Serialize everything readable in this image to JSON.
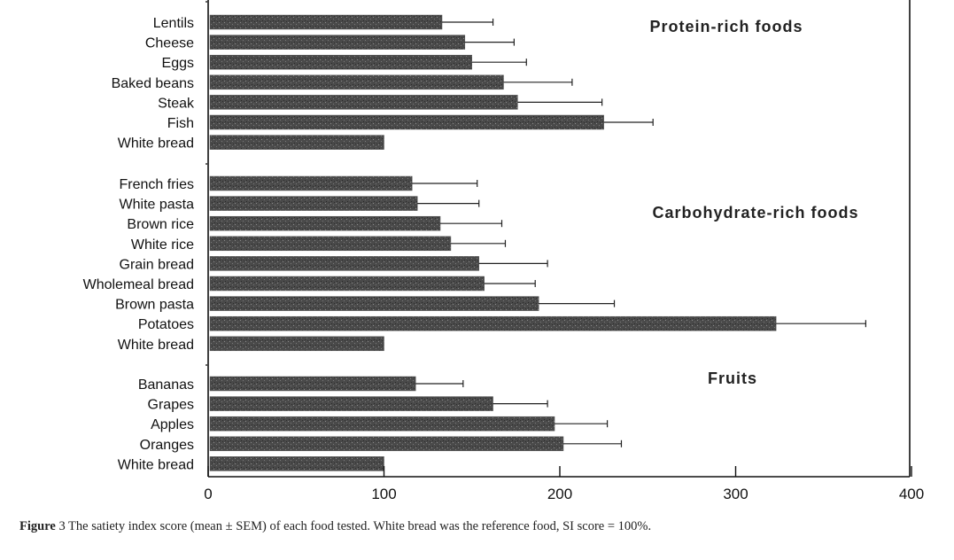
{
  "chart_data": {
    "type": "bar",
    "orientation": "horizontal",
    "xlim": [
      0,
      400
    ],
    "xticks": [
      "0",
      "100",
      "200",
      "300",
      "400"
    ],
    "grid": false,
    "groups": [
      {
        "title": "Protein-rich  foods",
        "bars": [
          {
            "label": "Lentils",
            "value": 133,
            "sem": 29
          },
          {
            "label": "Cheese",
            "value": 146,
            "sem": 28
          },
          {
            "label": "Eggs",
            "value": 150,
            "sem": 31
          },
          {
            "label": "Baked beans",
            "value": 168,
            "sem": 39
          },
          {
            "label": "Steak",
            "value": 176,
            "sem": 48
          },
          {
            "label": "Fish",
            "value": 225,
            "sem": 28
          },
          {
            "label": "White bread",
            "value": 100,
            "sem": 0
          }
        ]
      },
      {
        "title": "Carbohydrate-rich  foods",
        "bars": [
          {
            "label": "French fries",
            "value": 116,
            "sem": 37
          },
          {
            "label": "White pasta",
            "value": 119,
            "sem": 35
          },
          {
            "label": "Brown rice",
            "value": 132,
            "sem": 35
          },
          {
            "label": "White rice",
            "value": 138,
            "sem": 31
          },
          {
            "label": "Grain bread",
            "value": 154,
            "sem": 39
          },
          {
            "label": "Wholemeal bread",
            "value": 157,
            "sem": 29
          },
          {
            "label": "Brown pasta",
            "value": 188,
            "sem": 43
          },
          {
            "label": "Potatoes",
            "value": 323,
            "sem": 51
          },
          {
            "label": "White bread",
            "value": 100,
            "sem": 0
          }
        ]
      },
      {
        "title": "Fruits",
        "bars": [
          {
            "label": "Bananas",
            "value": 118,
            "sem": 27
          },
          {
            "label": "Grapes",
            "value": 162,
            "sem": 31
          },
          {
            "label": "Apples",
            "value": 197,
            "sem": 30
          },
          {
            "label": "Oranges",
            "value": 202,
            "sem": 33
          },
          {
            "label": "White bread",
            "value": 100,
            "sem": 0
          }
        ]
      }
    ]
  },
  "caption": {
    "label": "Figure",
    "text": " 3 The satiety index score (mean ± SEM) of each food tested. White bread was the reference food, SI score = 100%."
  },
  "colors": {
    "bar": "#555555",
    "axis": "#111111",
    "background": "#ffffff"
  }
}
